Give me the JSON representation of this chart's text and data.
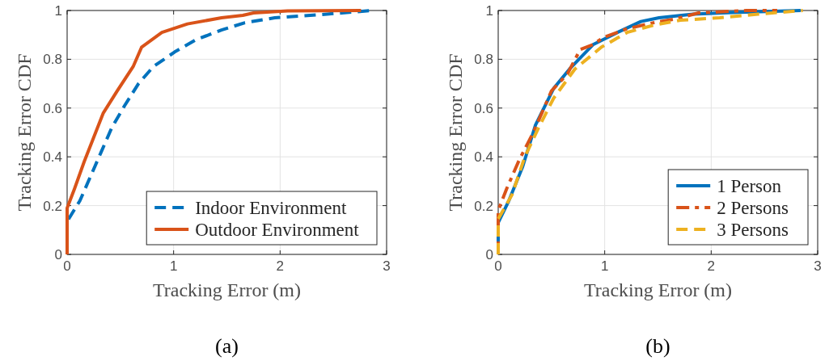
{
  "chart_data": [
    {
      "type": "line",
      "xlabel": "Tracking Error (m)",
      "ylabel": "Tracking Error CDF",
      "annotations": [
        "(a)"
      ],
      "xlim": [
        0,
        3
      ],
      "ylim": [
        0,
        1
      ],
      "xticks": [
        0,
        1,
        2,
        3
      ],
      "yticks": [
        0,
        0.2,
        0.4,
        0.6,
        0.8,
        1
      ],
      "grid": true,
      "legend": "bottom right",
      "series": [
        {
          "name": "Indoor Environment",
          "color": "#0072bd",
          "line_style": "dashed",
          "x": [
            0,
            0,
            0.12,
            0.23,
            0.32,
            0.42,
            0.54,
            0.67,
            0.81,
            1.01,
            1.21,
            1.45,
            1.67,
            1.95,
            2.44,
            2.86
          ],
          "values": [
            0,
            0.135,
            0.22,
            0.33,
            0.42,
            0.52,
            0.61,
            0.7,
            0.77,
            0.83,
            0.88,
            0.92,
            0.95,
            0.97,
            0.985,
            1
          ]
        },
        {
          "name": "Outdoor Environment",
          "color": "#d95319",
          "line_style": "solid",
          "x": [
            0,
            0,
            0.07,
            0.16,
            0.25,
            0.34,
            0.47,
            0.62,
            0.7,
            0.89,
            1.13,
            1.45,
            1.65,
            1.75,
            2.07,
            2.76
          ],
          "values": [
            0,
            0.19,
            0.27,
            0.38,
            0.48,
            0.58,
            0.67,
            0.77,
            0.85,
            0.91,
            0.945,
            0.97,
            0.98,
            0.99,
            0.998,
            1
          ]
        }
      ]
    },
    {
      "type": "line",
      "xlabel": "Tracking Error (m)",
      "ylabel": "Tracking Error CDF",
      "annotations": [
        "(b)"
      ],
      "xlim": [
        0,
        3
      ],
      "ylim": [
        0,
        1
      ],
      "xticks": [
        0,
        1,
        2,
        3
      ],
      "yticks": [
        0,
        0.2,
        0.4,
        0.6,
        0.8,
        1
      ],
      "grid": true,
      "legend": "bottom right",
      "series": [
        {
          "name": "1 Person",
          "color": "#0072bd",
          "line_style": "solid",
          "x": [
            0,
            0,
            0.1,
            0.23,
            0.35,
            0.52,
            0.67,
            0.89,
            1.12,
            1.34,
            1.51,
            1.83,
            2.2,
            2.84
          ],
          "values": [
            0,
            0.13,
            0.22,
            0.36,
            0.53,
            0.68,
            0.76,
            0.86,
            0.91,
            0.955,
            0.97,
            0.985,
            0.992,
            1
          ]
        },
        {
          "name": "2 Persons",
          "color": "#d95319",
          "line_style": "dashdot",
          "x": [
            0,
            0,
            0.08,
            0.2,
            0.33,
            0.5,
            0.65,
            0.77,
            0.89,
            0.99,
            1.21,
            1.46,
            1.66,
            1.88,
            2.33,
            2.62
          ],
          "values": [
            0,
            0.18,
            0.27,
            0.39,
            0.5,
            0.67,
            0.74,
            0.84,
            0.86,
            0.89,
            0.925,
            0.95,
            0.965,
            0.99,
            1,
            1
          ]
        },
        {
          "name": "3 Persons",
          "color": "#edb120",
          "line_style": "dashed",
          "x": [
            0,
            0,
            0.13,
            0.25,
            0.38,
            0.52,
            0.72,
            0.97,
            1.21,
            1.46,
            1.71,
            2.08,
            2.44,
            2.86
          ],
          "values": [
            0,
            0.145,
            0.245,
            0.4,
            0.52,
            0.64,
            0.76,
            0.85,
            0.91,
            0.94,
            0.96,
            0.97,
            0.985,
            1
          ]
        }
      ]
    }
  ]
}
